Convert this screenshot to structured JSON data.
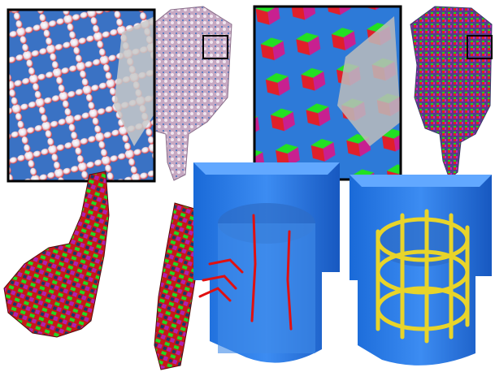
{
  "figure": {
    "panels": [
      {
        "id": "cross-glyph-field",
        "glyph": "cross",
        "colors": [
          "#3a78c8",
          "#ffffff",
          "#e02020"
        ]
      },
      {
        "id": "cube-glyph-field",
        "glyph": "cube",
        "colors": [
          "#1fe01f",
          "#e0202a",
          "#d0208c",
          "#2040d0"
        ]
      },
      {
        "id": "frame-field-tower",
        "glyph": "cube-tower",
        "colors": [
          "#e02020",
          "#20d020",
          "#c020c0"
        ]
      },
      {
        "id": "hex-mesh-streamlines",
        "glyph": "singular-curves",
        "colors": [
          "#1e78ff",
          "#e01010"
        ]
      },
      {
        "id": "hex-mesh-tubes",
        "glyph": "yellow-tubes",
        "colors": [
          "#1e78ff",
          "#e8d42a"
        ]
      }
    ]
  }
}
